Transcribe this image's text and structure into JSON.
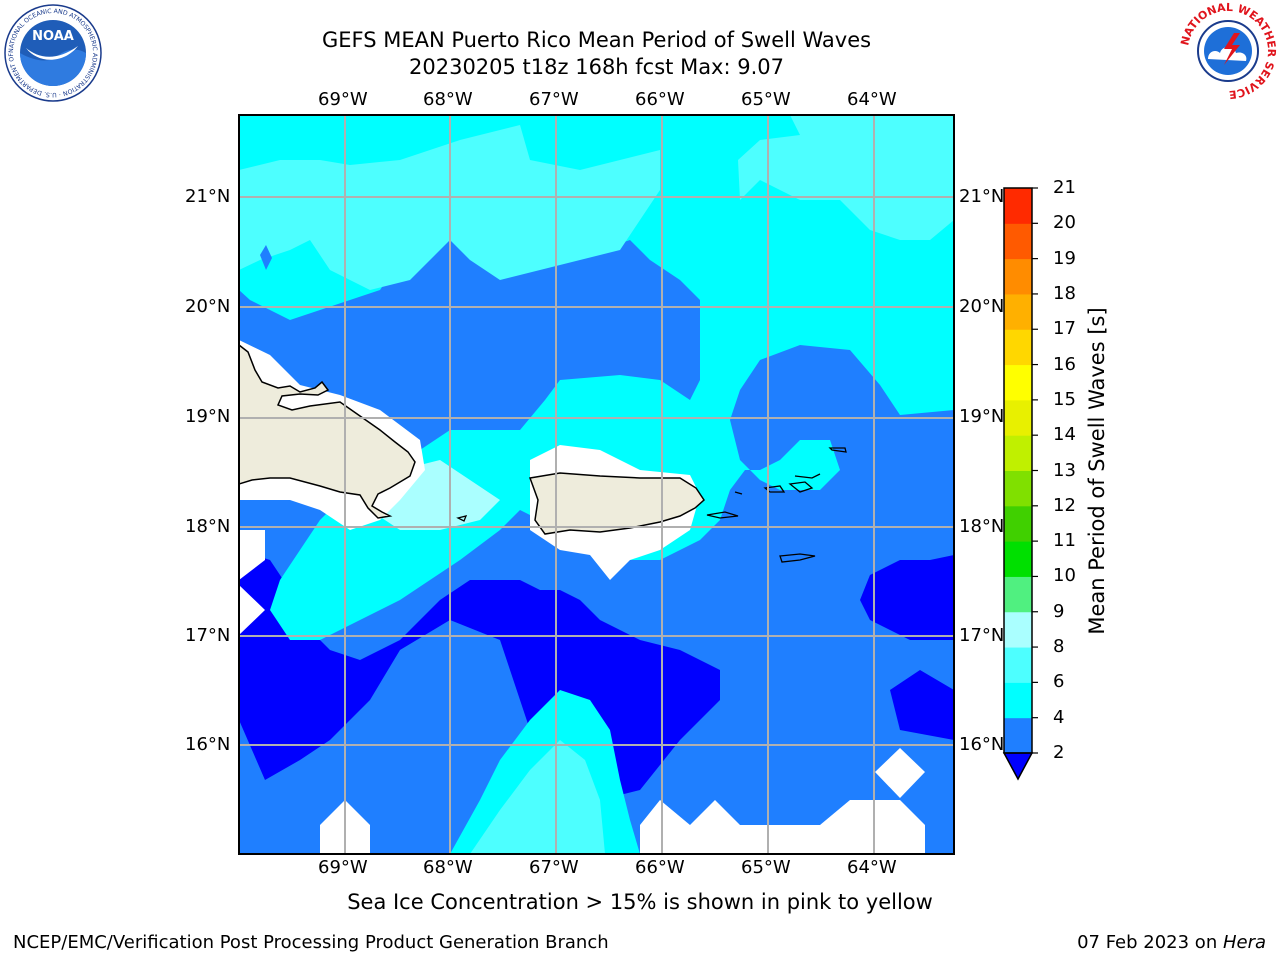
{
  "header": {
    "title_line1": "GEFS MEAN Puerto Rico Mean Period of Swell Waves",
    "title_line2": "20230205 t18z 168h fcst   Max: 9.07"
  },
  "map": {
    "lon_labels": [
      "69°W",
      "68°W",
      "67°W",
      "66°W",
      "65°W",
      "64°W"
    ],
    "lat_labels": [
      "21°N",
      "20°N",
      "19°N",
      "18°N",
      "17°N",
      "16°N"
    ],
    "land_color": "#eeecdc",
    "field_colors": {
      "c_2_4": "#0000ff",
      "c_4_6": "#1f7fff",
      "c_6_8": "#00ffff",
      "c_8_9": "#4dffff",
      "c_9_10": "#aaffff",
      "c_10_11": "#50f080"
    }
  },
  "colorbar": {
    "label": "Mean Period of Swell Waves [s]",
    "ticks": [
      "2",
      "4",
      "6",
      "8",
      "9",
      "10",
      "11",
      "12",
      "13",
      "14",
      "15",
      "16",
      "17",
      "18",
      "19",
      "20",
      "21"
    ],
    "colors": [
      "#1f7fff",
      "#00ffff",
      "#4dffff",
      "#aaffff",
      "#50f080",
      "#00e000",
      "#40d000",
      "#80e000",
      "#c0f000",
      "#e8f000",
      "#ffff00",
      "#ffd700",
      "#ffb000",
      "#ff8c00",
      "#ff5a00",
      "#ff2a00"
    ],
    "extend_color": "#0000ff"
  },
  "note": "Sea Ice Concentration > 15% is shown in pink to yellow",
  "footer": {
    "left": "NCEP/EMC/Verification Post Processing Product Generation Branch",
    "right_date": "07 Feb 2023 on ",
    "right_host": "Hera"
  },
  "logos": {
    "noaa_text": "NOAA",
    "noaa_ring": "NATIONAL OCEANIC AND ATMOSPHERIC ADMINISTRATION · U.S. DEPARTMENT OF COMMERCE",
    "nws_ring": "NATIONAL WEATHER SERVICE"
  }
}
